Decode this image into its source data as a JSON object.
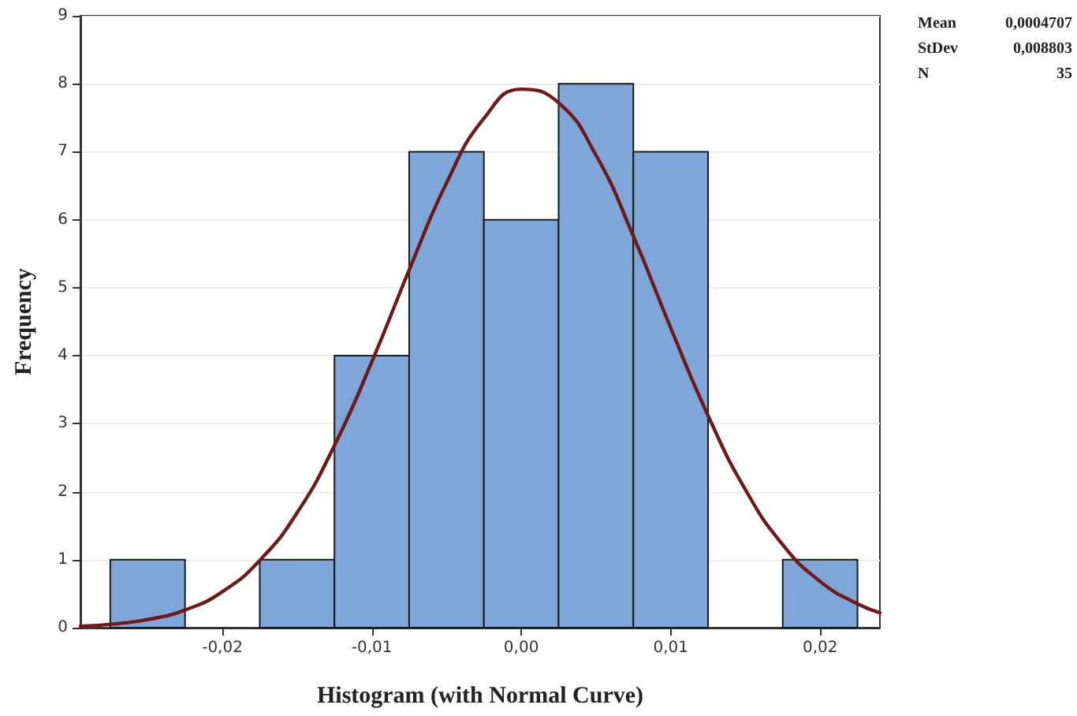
{
  "chart_data": {
    "type": "histogram",
    "xlabel": "Histogram (with Normal Curve)",
    "ylabel": "Frequency",
    "bins": [
      -0.0275,
      -0.0225,
      -0.0175,
      -0.0125,
      -0.0075,
      -0.0025,
      0.0025,
      0.0075,
      0.0125,
      0.0175,
      0.0225
    ],
    "values": [
      1,
      0,
      1,
      4,
      7,
      6,
      8,
      7,
      0,
      1
    ],
    "color": "#7ea6d8",
    "series": [
      {
        "type": "line",
        "color": "#6e1a1a",
        "x": [
          -0.0295,
          -0.027,
          -0.025,
          -0.0225,
          -0.02,
          -0.0175,
          -0.015,
          -0.0125,
          -0.01,
          -0.0075,
          -0.005,
          -0.0025,
          0,
          0.0025,
          0.005,
          0.0075,
          0.01,
          0.0125,
          0.015,
          0.0175,
          0.02,
          0.0225,
          0.024
        ],
        "values": [
          0.02,
          0.06,
          0.12,
          0.26,
          0.53,
          0.99,
          1.69,
          2.68,
          3.91,
          5.26,
          6.54,
          7.49,
          7.92,
          7.72,
          6.95,
          5.76,
          4.41,
          3.12,
          2.03,
          1.22,
          0.68,
          0.35,
          0.22
        ]
      }
    ],
    "xlim": [
      -0.0295,
      0.024
    ],
    "xticks": [
      {
        "value": -0.02,
        "label": "-0,02"
      },
      {
        "value": -0.01,
        "label": "-0,01"
      },
      {
        "value": 0,
        "label": "0,00"
      },
      {
        "value": 0.01,
        "label": "0,01"
      },
      {
        "value": 0.02,
        "label": "0,02"
      }
    ],
    "ylim": [
      0,
      9
    ],
    "yticks": [
      0,
      1,
      2,
      3,
      4,
      5,
      6,
      7,
      8,
      9
    ],
    "grid": "y",
    "marker": "none",
    "line_style": "solid",
    "annotations": [
      "Mean 0,0004707",
      "StDev 0,008803",
      "N 35"
    ]
  }
}
